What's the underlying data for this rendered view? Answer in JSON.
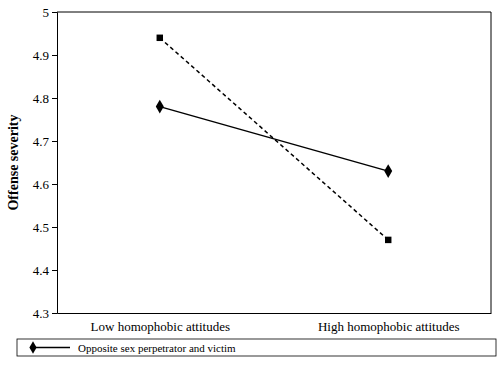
{
  "chart_data": {
    "type": "line",
    "categories": [
      "Low homophobic attitudes",
      "High homophobic attitudes"
    ],
    "y_label": "Offense severity",
    "series": [
      {
        "name": "Opposite sex perpetrator and victim",
        "color": "#000000",
        "values": [
          4.78,
          4.63
        ],
        "marker": "diamond",
        "line_style": "solid"
      },
      {
        "color": "#000000",
        "values": [
          4.94,
          4.47
        ],
        "marker": "square",
        "line_style": "dashed"
      }
    ],
    "ylim": [
      4.3,
      5
    ],
    "yticks": [
      4.3,
      4.4,
      4.5,
      4.6,
      4.7,
      4.8,
      4.9,
      5
    ],
    "grid": false,
    "legend": "bottom"
  }
}
